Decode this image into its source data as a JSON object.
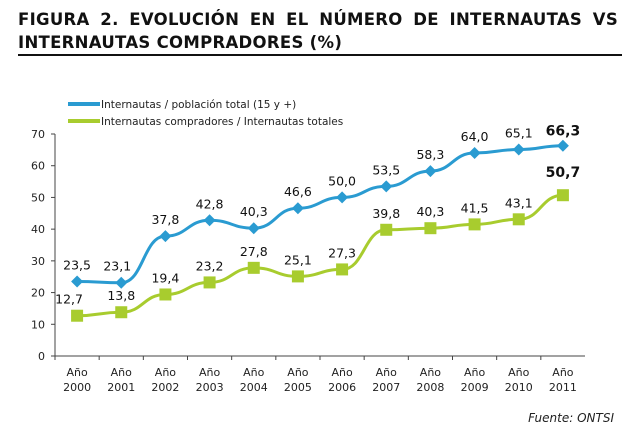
{
  "title": "FIGURA 2. EVOLUCIÓN EN EL NÚMERO DE INTERNAUTAS VS INTERNAUTAS COMPRADORES (%)",
  "source": "Fuente: ONTSI",
  "chart_data": {
    "type": "line",
    "categories": [
      "Año 2000",
      "Año 2001",
      "Año 2002",
      "Año 2003",
      "Año 2004",
      "Año 2005",
      "Año 2006",
      "Año 2007",
      "Año 2008",
      "Año 2009",
      "Año 2010",
      "Año 2011"
    ],
    "ylim": [
      0,
      70
    ],
    "yticks": [
      0,
      10,
      20,
      30,
      40,
      50,
      60,
      70
    ],
    "grid": false,
    "legend": "top-left",
    "series": [
      {
        "name": "Internautas / población total (15 y +)",
        "color": "#2a9bd1",
        "marker": "diamond",
        "values": [
          23.5,
          23.1,
          37.8,
          42.8,
          40.3,
          46.6,
          50.0,
          53.5,
          58.3,
          64.0,
          65.1,
          66.3
        ],
        "labels": [
          "23,5",
          "23,1",
          "37,8",
          "42,8",
          "40,3",
          "46,6",
          "50,0",
          "53,5",
          "58,3",
          "64,0",
          "65,1",
          "66,3"
        ]
      },
      {
        "name": "Internautas compradores / Internautas totales",
        "color": "#a8cc2e",
        "marker": "square",
        "values": [
          12.7,
          13.8,
          19.4,
          23.2,
          27.8,
          25.1,
          27.3,
          39.8,
          40.3,
          41.5,
          43.1,
          50.7
        ],
        "labels": [
          "12,7",
          "13,8",
          "19,4",
          "23,2",
          "27,8",
          "25,1",
          "27,3",
          "39,8",
          "40,3",
          "41,5",
          "43,1",
          "50,7"
        ]
      }
    ]
  }
}
